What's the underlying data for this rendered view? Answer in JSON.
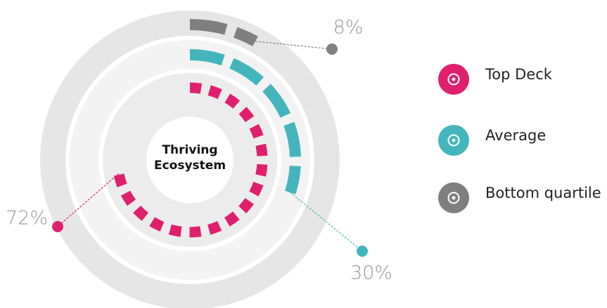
{
  "chart_data": {
    "type": "radial_bar",
    "title": "Thriving Ecosystem",
    "series": [
      {
        "name": "Top Deck",
        "color": "#e0206e",
        "values": [
          72
        ],
        "value_labels": [
          "72%"
        ]
      },
      {
        "name": "Average",
        "color": "#45b5bd",
        "values": [
          30
        ],
        "value_labels": [
          "30%"
        ]
      },
      {
        "name": "Bottom quartile",
        "color": "#7f7f7f",
        "values": [
          8
        ],
        "value_labels": [
          "8%"
        ]
      }
    ],
    "ylim": [
      0,
      100
    ]
  }
}
